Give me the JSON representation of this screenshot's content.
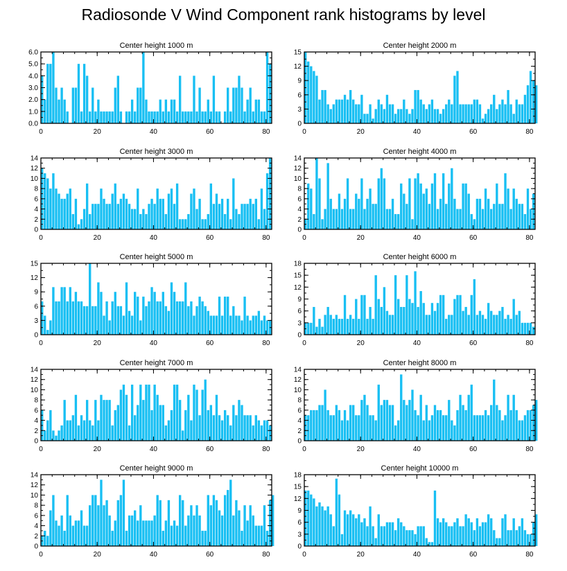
{
  "title": "Radiosonde V Wind Component rank histograms by level",
  "bar_color": "#18bff3",
  "chart_data": [
    {
      "type": "bar",
      "title": "Center height 1000 m",
      "xlim": [
        0,
        82
      ],
      "ylim": [
        0,
        6
      ],
      "yticks": [
        0,
        1,
        2,
        3,
        4,
        5,
        6
      ],
      "ytick_labels": [
        "0.0",
        "1.0",
        "2.0",
        "3.0",
        "4.0",
        "5.0",
        "6.0"
      ],
      "xticks": [
        0,
        20,
        40,
        60,
        80
      ],
      "xtick_labels": [
        "0",
        "20",
        "40",
        "60",
        "80"
      ],
      "values": [
        4,
        2,
        5,
        5,
        6,
        3,
        2,
        3,
        2,
        1,
        0,
        3,
        3,
        5,
        1,
        5,
        4,
        1,
        3,
        1,
        2,
        1,
        1,
        1,
        1,
        1,
        3,
        4,
        1,
        0,
        1,
        1,
        2,
        1,
        3,
        3,
        6,
        2,
        1,
        1,
        1,
        1,
        2,
        1,
        2,
        1,
        2,
        2,
        1,
        4,
        1,
        1,
        1,
        1,
        4,
        1,
        3,
        1,
        1,
        2,
        1,
        4,
        1,
        1,
        0,
        1,
        3,
        1,
        3,
        3,
        4,
        3,
        1,
        2,
        3,
        1,
        2,
        2,
        1,
        1,
        6,
        5
      ]
    },
    {
      "type": "bar",
      "title": "Center height 2000 m",
      "xlim": [
        0,
        82
      ],
      "ylim": [
        0,
        15
      ],
      "yticks": [
        0,
        3,
        6,
        9,
        12,
        15
      ],
      "ytick_labels": [
        "0",
        "3",
        "6",
        "9",
        "12",
        "15"
      ],
      "xticks": [
        0,
        20,
        40,
        60,
        80
      ],
      "xtick_labels": [
        "0",
        "20",
        "40",
        "60",
        "80"
      ],
      "values": [
        15,
        13,
        12,
        11,
        10,
        5,
        7,
        7,
        4,
        3,
        4,
        5,
        5,
        5,
        6,
        5,
        7,
        5,
        4,
        4,
        6,
        2,
        2,
        4,
        1,
        3,
        5,
        4,
        3,
        6,
        4,
        4,
        2,
        3,
        3,
        5,
        3,
        2,
        3,
        7,
        7,
        5,
        4,
        3,
        4,
        5,
        3,
        3,
        2,
        3,
        4,
        5,
        4,
        10,
        11,
        4,
        4,
        4,
        4,
        4,
        5,
        5,
        4,
        1,
        2,
        3,
        4,
        6,
        3,
        4,
        5,
        4,
        7,
        4,
        2,
        5,
        4,
        4,
        6,
        8,
        11,
        9,
        8
      ]
    },
    {
      "type": "bar",
      "title": "Center height 3000 m",
      "xlim": [
        0,
        82
      ],
      "ylim": [
        0,
        14
      ],
      "yticks": [
        0,
        2,
        4,
        6,
        8,
        10,
        12,
        14
      ],
      "ytick_labels": [
        "0",
        "2",
        "4",
        "6",
        "8",
        "10",
        "12",
        "14"
      ],
      "xticks": [
        0,
        20,
        40,
        60,
        80
      ],
      "xtick_labels": [
        "0",
        "20",
        "40",
        "60",
        "80"
      ],
      "values": [
        12,
        11,
        10,
        8,
        11,
        8,
        7,
        6,
        6,
        7,
        8,
        3,
        6,
        1,
        2,
        4,
        9,
        3,
        5,
        5,
        5,
        8,
        6,
        5,
        5,
        7,
        9,
        5,
        6,
        7,
        6,
        5,
        4,
        4,
        8,
        3,
        4,
        3,
        5,
        6,
        5,
        8,
        6,
        6,
        3,
        7,
        8,
        5,
        9,
        2,
        2,
        2,
        3,
        7,
        8,
        4,
        6,
        2,
        2,
        3,
        9,
        5,
        7,
        5,
        6,
        3,
        6,
        2,
        10,
        4,
        3,
        5,
        5,
        5,
        6,
        5,
        6,
        2,
        8,
        4,
        11,
        14
      ]
    },
    {
      "type": "bar",
      "title": "Center height 4000 m",
      "xlim": [
        0,
        82
      ],
      "ylim": [
        0,
        14
      ],
      "yticks": [
        0,
        2,
        4,
        6,
        8,
        10,
        12,
        14
      ],
      "ytick_labels": [
        "0",
        "2",
        "4",
        "6",
        "8",
        "10",
        "12",
        "14"
      ],
      "xticks": [
        0,
        20,
        40,
        60,
        80
      ],
      "xtick_labels": [
        "0",
        "20",
        "40",
        "60",
        "80"
      ],
      "values": [
        2,
        9,
        8,
        3,
        14,
        10,
        2,
        4,
        13,
        6,
        4,
        4,
        7,
        4,
        6,
        10,
        4,
        4,
        7,
        6,
        10,
        4,
        6,
        8,
        5,
        5,
        10,
        12,
        10,
        4,
        4,
        6,
        3,
        3,
        9,
        7,
        5,
        10,
        2,
        10,
        11,
        9,
        7,
        8,
        5,
        9,
        11,
        4,
        6,
        11,
        5,
        9,
        12,
        6,
        4,
        4,
        9,
        9,
        7,
        3,
        2,
        6,
        6,
        4,
        8,
        6,
        4,
        5,
        9,
        5,
        5,
        11,
        8,
        4,
        8,
        6,
        5,
        5,
        3,
        8,
        4,
        7
      ]
    },
    {
      "type": "bar",
      "title": "Center height 5000 m",
      "xlim": [
        0,
        82
      ],
      "ylim": [
        0,
        15
      ],
      "yticks": [
        0,
        3,
        6,
        9,
        12,
        15
      ],
      "ytick_labels": [
        "0",
        "3",
        "6",
        "9",
        "12",
        "15"
      ],
      "xticks": [
        0,
        20,
        40,
        60,
        80
      ],
      "xtick_labels": [
        "0",
        "20",
        "40",
        "60",
        "80"
      ],
      "values": [
        7,
        4,
        1,
        3,
        10,
        7,
        7,
        10,
        10,
        7,
        10,
        7,
        9,
        7,
        7,
        6,
        6,
        15,
        6,
        6,
        11,
        9,
        4,
        7,
        3,
        7,
        9,
        6,
        6,
        4,
        11,
        5,
        4,
        9,
        8,
        3,
        8,
        6,
        7,
        10,
        9,
        7,
        7,
        9,
        6,
        5,
        11,
        9,
        7,
        7,
        7,
        11,
        6,
        7,
        4,
        6,
        8,
        7,
        6,
        5,
        4,
        4,
        4,
        8,
        4,
        8,
        8,
        4,
        6,
        4,
        4,
        3,
        8,
        4,
        3,
        4,
        4,
        5,
        3,
        4,
        3,
        3
      ]
    },
    {
      "type": "bar",
      "title": "Center height 6000 m",
      "xlim": [
        0,
        82
      ],
      "ylim": [
        0,
        18
      ],
      "yticks": [
        0,
        3,
        6,
        9,
        12,
        15,
        18
      ],
      "ytick_labels": [
        "0",
        "3",
        "6",
        "9",
        "12",
        "15",
        "18"
      ],
      "xticks": [
        0,
        20,
        40,
        60,
        80
      ],
      "xtick_labels": [
        "0",
        "20",
        "40",
        "60",
        "80"
      ],
      "values": [
        3,
        3,
        3,
        7,
        2,
        4,
        2,
        5,
        7,
        5,
        4,
        5,
        4,
        4,
        10,
        4,
        5,
        4,
        9,
        4,
        10,
        10,
        4,
        7,
        4,
        15,
        9,
        7,
        12,
        6,
        5,
        5,
        15,
        9,
        7,
        7,
        15,
        9,
        8,
        16,
        7,
        11,
        8,
        5,
        5,
        8,
        6,
        8,
        10,
        10,
        4,
        5,
        5,
        9,
        10,
        10,
        6,
        7,
        5,
        10,
        14,
        5,
        6,
        5,
        4,
        8,
        6,
        5,
        5,
        6,
        7,
        4,
        5,
        4,
        9,
        5,
        6,
        3,
        3,
        3,
        3,
        2
      ]
    },
    {
      "type": "bar",
      "title": "Center height 7000 m",
      "xlim": [
        0,
        82
      ],
      "ylim": [
        0,
        14
      ],
      "yticks": [
        0,
        2,
        4,
        6,
        8,
        10,
        12,
        14
      ],
      "ytick_labels": [
        "0",
        "2",
        "4",
        "6",
        "8",
        "10",
        "12",
        "14"
      ],
      "xticks": [
        0,
        20,
        40,
        60,
        80
      ],
      "xtick_labels": [
        "0",
        "20",
        "40",
        "60",
        "80"
      ],
      "values": [
        6,
        2,
        4,
        6,
        2,
        1,
        2,
        3,
        8,
        4,
        4,
        5,
        9,
        3,
        5,
        4,
        8,
        4,
        3,
        8,
        4,
        9,
        8,
        8,
        8,
        3,
        6,
        7,
        10,
        11,
        9,
        3,
        11,
        5,
        7,
        11,
        8,
        11,
        11,
        6,
        11,
        9,
        7,
        7,
        3,
        4,
        6,
        11,
        11,
        8,
        2,
        6,
        9,
        4,
        11,
        10,
        5,
        10,
        12,
        6,
        7,
        5,
        9,
        5,
        4,
        6,
        5,
        3,
        7,
        5,
        8,
        7,
        5,
        5,
        5,
        3,
        5,
        4,
        3,
        4,
        4,
        3
      ]
    },
    {
      "type": "bar",
      "title": "Center height 8000 m",
      "xlim": [
        0,
        82
      ],
      "ylim": [
        0,
        14
      ],
      "yticks": [
        0,
        2,
        4,
        6,
        8,
        10,
        12,
        14
      ],
      "ytick_labels": [
        "0",
        "2",
        "4",
        "6",
        "8",
        "10",
        "12",
        "14"
      ],
      "xticks": [
        0,
        20,
        40,
        60,
        80
      ],
      "xtick_labels": [
        "0",
        "20",
        "40",
        "60",
        "80"
      ],
      "values": [
        5,
        5,
        6,
        6,
        6,
        7,
        7,
        10,
        6,
        5,
        5,
        7,
        6,
        4,
        6,
        4,
        7,
        7,
        5,
        5,
        8,
        9,
        7,
        5,
        5,
        4,
        11,
        7,
        8,
        8,
        7,
        7,
        3,
        4,
        13,
        8,
        7,
        8,
        10,
        6,
        5,
        9,
        4,
        7,
        4,
        5,
        7,
        6,
        6,
        5,
        5,
        8,
        4,
        3,
        6,
        9,
        7,
        6,
        9,
        11,
        5,
        5,
        5,
        5,
        6,
        5,
        7,
        12,
        7,
        6,
        4,
        5,
        9,
        6,
        9,
        6,
        4,
        4,
        5,
        6,
        6,
        7,
        8
      ]
    },
    {
      "type": "bar",
      "title": "Center height 9000 m",
      "xlim": [
        0,
        82
      ],
      "ylim": [
        0,
        14
      ],
      "yticks": [
        0,
        2,
        4,
        6,
        8,
        10,
        12,
        14
      ],
      "ytick_labels": [
        "0",
        "2",
        "4",
        "6",
        "8",
        "10",
        "12",
        "14"
      ],
      "xticks": [
        0,
        20,
        40,
        60,
        80
      ],
      "xtick_labels": [
        "0",
        "20",
        "40",
        "60",
        "80"
      ],
      "values": [
        2,
        3,
        2,
        7,
        10,
        5,
        4,
        6,
        3,
        10,
        6,
        4,
        5,
        5,
        7,
        4,
        4,
        8,
        10,
        10,
        8,
        13,
        8,
        9,
        6,
        3,
        5,
        9,
        10,
        13,
        3,
        6,
        6,
        7,
        5,
        8,
        5,
        5,
        5,
        5,
        6,
        10,
        9,
        3,
        5,
        9,
        4,
        5,
        4,
        10,
        9,
        4,
        6,
        8,
        6,
        8,
        6,
        3,
        3,
        10,
        8,
        10,
        9,
        7,
        6,
        10,
        11,
        13,
        6,
        9,
        7,
        3,
        8,
        5,
        8,
        6,
        4,
        4,
        4,
        8,
        3,
        9,
        10
      ]
    },
    {
      "type": "bar",
      "title": "Center height 10000 m",
      "xlim": [
        0,
        82
      ],
      "ylim": [
        0,
        18
      ],
      "yticks": [
        0,
        3,
        6,
        9,
        12,
        15,
        18
      ],
      "ytick_labels": [
        "0",
        "3",
        "6",
        "9",
        "12",
        "15",
        "18"
      ],
      "xticks": [
        0,
        20,
        40,
        60,
        80
      ],
      "xtick_labels": [
        "0",
        "20",
        "40",
        "60",
        "80"
      ],
      "values": [
        14,
        14,
        13,
        12,
        10,
        11,
        10,
        9,
        10,
        8,
        5,
        17,
        13,
        3,
        9,
        8,
        9,
        8,
        7,
        8,
        6,
        7,
        5,
        10,
        5,
        2,
        8,
        5,
        5,
        6,
        6,
        6,
        4,
        7,
        6,
        5,
        4,
        4,
        4,
        3,
        5,
        5,
        5,
        2,
        1,
        1,
        14,
        7,
        6,
        7,
        6,
        5,
        5,
        6,
        7,
        5,
        5,
        8,
        7,
        6,
        4,
        7,
        5,
        6,
        6,
        8,
        7,
        4,
        2,
        2,
        7,
        8,
        4,
        4,
        7,
        4,
        5,
        7,
        4,
        3,
        3,
        6,
        8
      ]
    }
  ]
}
